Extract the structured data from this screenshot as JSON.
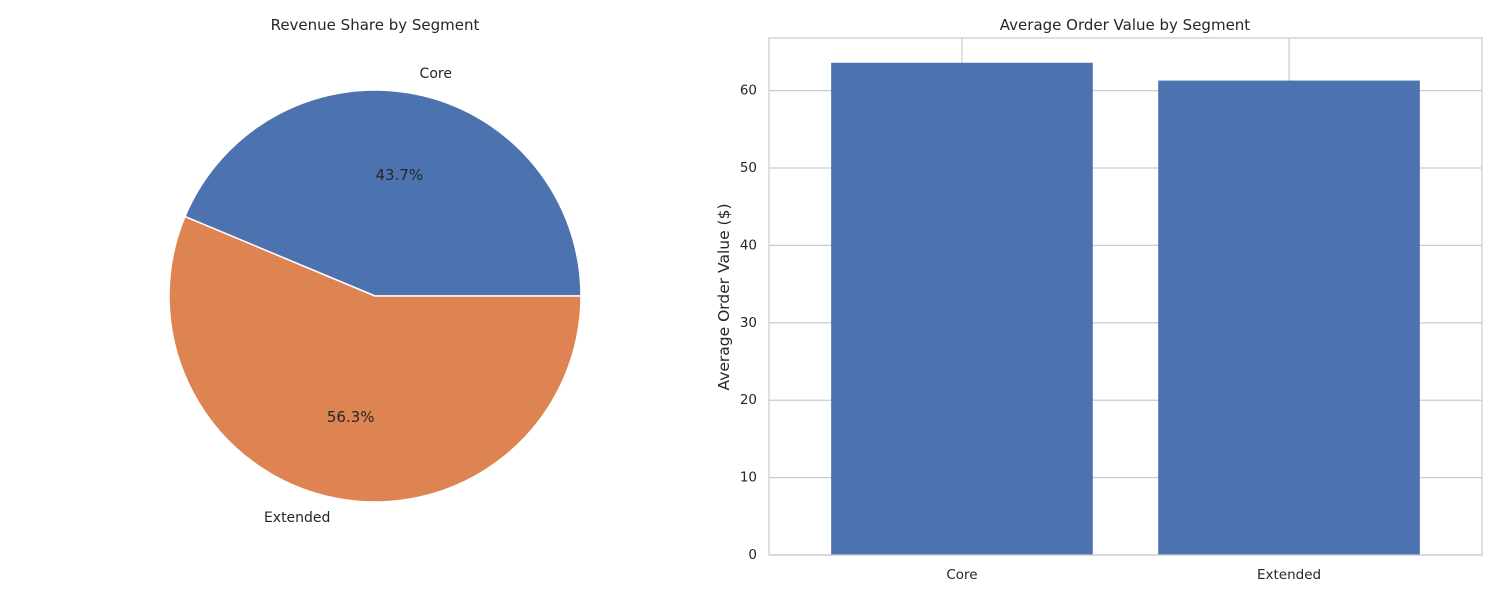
{
  "chart_data": [
    {
      "type": "pie",
      "title": "Revenue Share by Segment",
      "labels": [
        "Core",
        "Extended"
      ],
      "values": [
        43.7,
        56.3
      ],
      "autopct": [
        "43.7%",
        "56.3%"
      ],
      "colors": [
        "#4c72b0",
        "#dd8452"
      ]
    },
    {
      "type": "bar",
      "title": "Average Order Value by Segment",
      "categories": [
        "Core",
        "Extended"
      ],
      "values": [
        63.6,
        61.3
      ],
      "xlabel": "",
      "ylabel": "Average Order Value ($)",
      "ylim": [
        0,
        66.8
      ],
      "yticks": [
        0,
        10,
        20,
        30,
        40,
        50,
        60
      ],
      "grid": true,
      "color": "#4c72b0"
    }
  ]
}
